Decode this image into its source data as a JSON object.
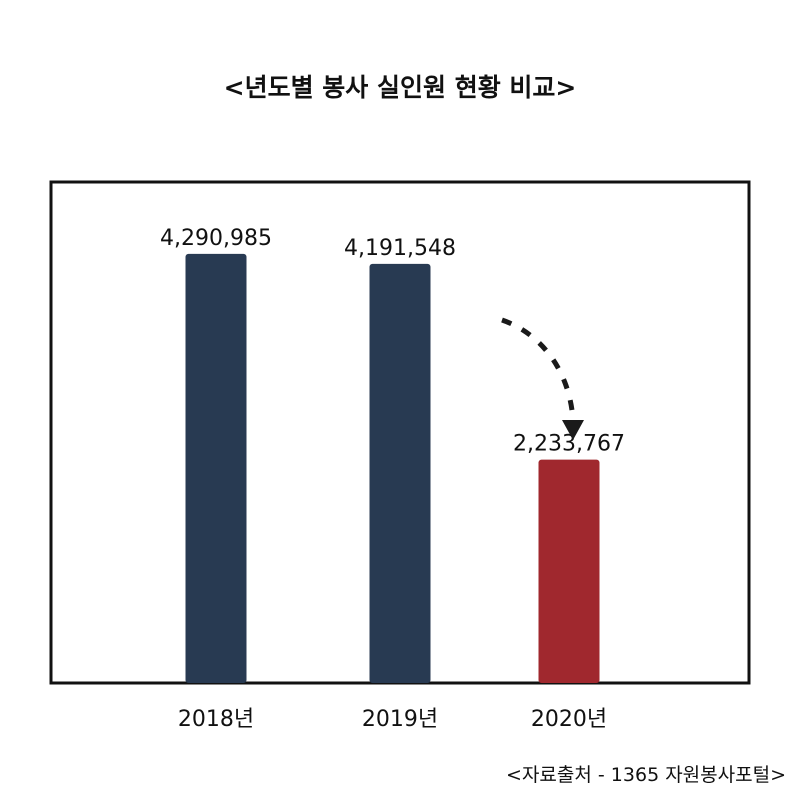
{
  "chart_data": {
    "type": "bar",
    "title": "<년도별 봉사 실인원 현황 비교>",
    "categories": [
      "2018년",
      "2019년",
      "2020년"
    ],
    "values": [
      4290985,
      4191548,
      2233767
    ],
    "value_labels": [
      "4,290,985",
      "4,191,548",
      "2,233,767"
    ],
    "bar_colors": [
      "#283a52",
      "#283a52",
      "#a0282e"
    ],
    "ylim": [
      0,
      6000000
    ],
    "grid": false,
    "legend": "none",
    "annotation": "dashed-curved-arrow-decrease"
  },
  "source_note": "<자료출처 - 1365 자원봉사포털>"
}
